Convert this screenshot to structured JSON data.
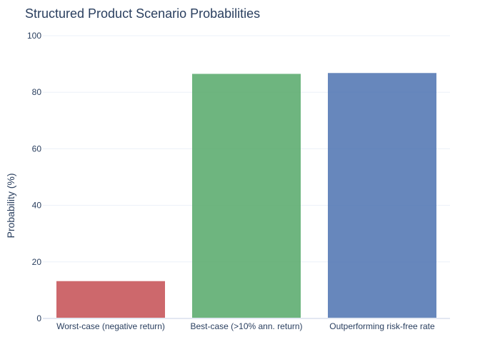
{
  "chart_data": {
    "type": "bar",
    "title": "Structured Product Scenario Probabilities",
    "xlabel": "",
    "ylabel": "Probability (%)",
    "categories": [
      "Worst-case (negative return)",
      "Best-case (>10% ann. return)",
      "Outperforming risk-free rate"
    ],
    "values": [
      13.2,
      86.5,
      86.8
    ],
    "colors": [
      "#c44e52",
      "#55a868",
      "#4c72b0"
    ],
    "ylim": [
      0,
      100
    ],
    "yticks": [
      0,
      20,
      40,
      60,
      80,
      100
    ],
    "grid": true,
    "legend": "none"
  }
}
